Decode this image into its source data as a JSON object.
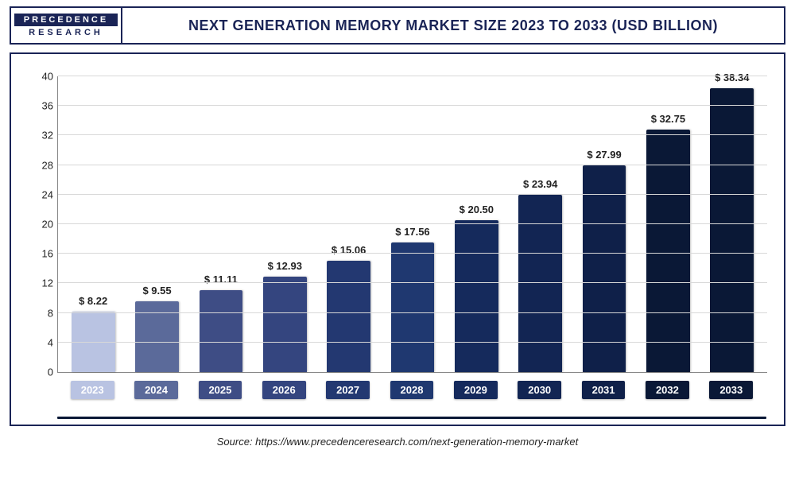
{
  "logo": {
    "top": "PRECEDENCE",
    "bottom": "RESEARCH"
  },
  "title": "NEXT GENERATION MEMORY MARKET SIZE 2023 TO 2033 (USD BILLION)",
  "source": "Source: https://www.precedenceresearch.com/next-generation-memory-market",
  "chart": {
    "type": "bar",
    "ylim": [
      0,
      40
    ],
    "ytick_step": 4,
    "yticks": [
      0,
      4,
      8,
      12,
      16,
      20,
      24,
      28,
      32,
      36,
      40
    ],
    "grid_color": "#d8d8d8",
    "background_color": "#ffffff",
    "border_color": "#1a2456",
    "bar_width_ratio": 0.68,
    "value_prefix": "$ ",
    "value_fontsize": 13,
    "xlabel_fontsize": 13,
    "xlabel_textcolor": "#ffffff",
    "data": [
      {
        "year": "2023",
        "value": 8.22,
        "color": "#b9c3e2"
      },
      {
        "year": "2024",
        "value": 9.55,
        "color": "#5b6a9a"
      },
      {
        "year": "2025",
        "value": 11.11,
        "color": "#3e4d85"
      },
      {
        "year": "2026",
        "value": 12.93,
        "color": "#34457f"
      },
      {
        "year": "2027",
        "value": 15.06,
        "color": "#233871"
      },
      {
        "year": "2028",
        "value": 17.56,
        "color": "#1f3870"
      },
      {
        "year": "2029",
        "value": 20.5,
        "color": "#152a5c"
      },
      {
        "year": "2030",
        "value": 23.94,
        "color": "#122553"
      },
      {
        "year": "2031",
        "value": 27.99,
        "color": "#0f2049"
      },
      {
        "year": "2032",
        "value": 32.75,
        "color": "#0a1836"
      },
      {
        "year": "2033",
        "value": 38.34,
        "color": "#0a1836"
      }
    ]
  }
}
